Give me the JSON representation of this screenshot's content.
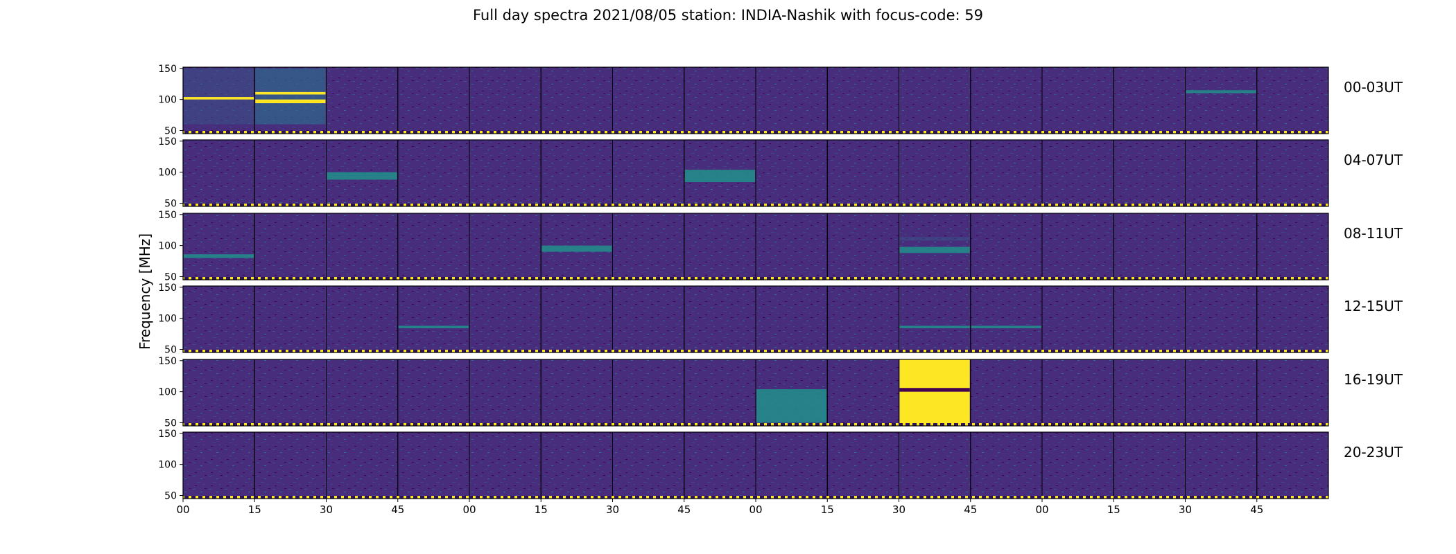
{
  "title": "Full day spectra 2021/08/05 station: INDIA-Nashik with focus-code: 59",
  "chart_data": {
    "type": "heatmap",
    "title": "Full day spectra 2021/08/05 station: INDIA-Nashik with focus-code: 59",
    "ylabel": "Frequency [MHz]",
    "xlabel": "",
    "ylim": [
      45,
      152
    ],
    "y_ticks": [
      50,
      100,
      150
    ],
    "x_ticks": [
      "00",
      "15",
      "30",
      "45",
      "00",
      "15",
      "30",
      "45",
      "00",
      "15",
      "30",
      "45",
      "00",
      "15",
      "30",
      "45"
    ],
    "rows": [
      "00-03UT",
      "04-07UT",
      "08-11UT",
      "12-15UT",
      "16-19UT",
      "20-23UT"
    ],
    "segments_per_row": 16,
    "segment_minutes": 15,
    "colormap": [
      "#440154",
      "#3b528b",
      "#21918c",
      "#5ec962",
      "#fde725"
    ],
    "background_color": "#46327e",
    "events": [
      {
        "row": "00-03UT",
        "segment": 0,
        "freq": [
          60,
          150
        ],
        "level": "elevated"
      },
      {
        "row": "00-03UT",
        "segment": 0,
        "freq": [
          100,
          104
        ],
        "level": "bright"
      },
      {
        "row": "00-03UT",
        "segment": 1,
        "freq": [
          60,
          150
        ],
        "level": "high"
      },
      {
        "row": "00-03UT",
        "segment": 1,
        "freq": [
          94,
          100
        ],
        "level": "bright"
      },
      {
        "row": "00-03UT",
        "segment": 1,
        "freq": [
          108,
          112
        ],
        "level": "bright"
      },
      {
        "row": "00-03UT",
        "segment": 14,
        "freq": [
          110,
          115
        ],
        "level": "moderate"
      },
      {
        "row": "04-07UT",
        "segment": 2,
        "freq": [
          88,
          100
        ],
        "level": "moderate"
      },
      {
        "row": "04-07UT",
        "segment": 7,
        "freq": [
          84,
          104
        ],
        "level": "moderate"
      },
      {
        "row": "08-11UT",
        "segment": 0,
        "freq": [
          80,
          86
        ],
        "level": "moderate"
      },
      {
        "row": "08-11UT",
        "segment": 5,
        "freq": [
          90,
          100
        ],
        "level": "moderate"
      },
      {
        "row": "08-11UT",
        "segment": 10,
        "freq": [
          88,
          98
        ],
        "level": "moderate"
      },
      {
        "row": "08-11UT",
        "segment": 10,
        "freq": [
          108,
          114
        ],
        "level": "elevated"
      },
      {
        "row": "12-15UT",
        "segment": 3,
        "freq": [
          84,
          88
        ],
        "level": "moderate"
      },
      {
        "row": "12-15UT",
        "segment": 10,
        "freq": [
          84,
          88
        ],
        "level": "moderate"
      },
      {
        "row": "12-15UT",
        "segment": 11,
        "freq": [
          84,
          88
        ],
        "level": "moderate"
      },
      {
        "row": "16-19UT",
        "segment": 8,
        "freq": [
          50,
          104
        ],
        "level": "moderate"
      },
      {
        "row": "16-19UT",
        "segment": 10,
        "freq": [
          48,
          152
        ],
        "level": "saturated"
      }
    ]
  }
}
